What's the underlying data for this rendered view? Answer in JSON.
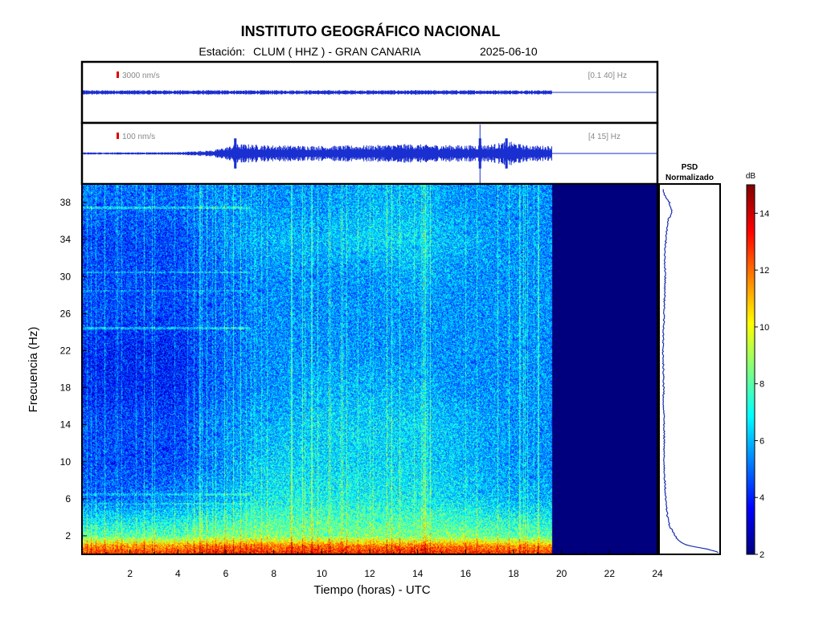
{
  "header": {
    "title": "INSTITUTO GEOGRÁFICO NACIONAL",
    "station_label": "Estación:",
    "station": "CLUM ( HHZ ) - GRAN CANARIA",
    "date": "2025-06-10"
  },
  "traces": [
    {
      "scale": "3000 nm/s",
      "band": "[0.1 40] Hz"
    },
    {
      "scale": "100 nm/s",
      "band": "[4 15] Hz"
    }
  ],
  "psd": {
    "title_line1": "PSD",
    "title_line2": "Normalizado"
  },
  "colorbar": {
    "unit": "dB",
    "range": [
      2,
      15
    ],
    "ticks": [
      2,
      4,
      6,
      8,
      10,
      12,
      14
    ]
  },
  "chart_data": [
    {
      "type": "line",
      "name": "seismogram-broadband",
      "xlabel": "",
      "ylabel": "",
      "xlim": [
        0,
        24
      ],
      "data_end_hour": 19.6,
      "amplitude_profile": {
        "x": [
          0,
          19.6
        ],
        "relative_amplitude": [
          0.08,
          0.08
        ]
      }
    },
    {
      "type": "line",
      "name": "seismogram-filtered",
      "xlabel": "",
      "ylabel": "",
      "xlim": [
        0,
        24
      ],
      "data_end_hour": 19.6,
      "amplitude_profile": {
        "x": [
          0,
          2,
          4,
          5.5,
          6.5,
          8,
          10,
          12,
          13.5,
          14.5,
          16,
          17,
          17.8,
          18.5,
          19.6
        ],
        "relative_amplitude": [
          0.04,
          0.04,
          0.05,
          0.12,
          0.35,
          0.3,
          0.28,
          0.3,
          0.35,
          0.32,
          0.3,
          0.32,
          0.45,
          0.3,
          0.28
        ]
      },
      "spikes_hour": [
        6.4,
        16.6,
        17.7
      ]
    },
    {
      "type": "heatmap",
      "xlabel": "Tiempo (horas) - UTC",
      "ylabel": "Frecuencia  (Hz)",
      "xlim": [
        0,
        24
      ],
      "ylim": [
        0,
        40
      ],
      "xticks": [
        2,
        4,
        6,
        8,
        10,
        12,
        14,
        16,
        18,
        20,
        22,
        24
      ],
      "yticks": [
        2,
        6,
        10,
        14,
        18,
        22,
        26,
        30,
        34,
        38
      ],
      "data_end_hour": 19.6,
      "color_scale": "jet",
      "zlim": [
        2,
        15
      ],
      "approx_level_db": {
        "hours": [
          0,
          2,
          4,
          6,
          8,
          10,
          12,
          14,
          16,
          18,
          19.6
        ],
        "freqs": [
          1,
          2,
          6,
          10,
          14,
          18,
          22,
          26,
          30,
          34,
          38
        ],
        "levels": [
          [
            11,
            11,
            11,
            11.5,
            11.5,
            11.5,
            11.5,
            11.5,
            11.5,
            11,
            11
          ],
          [
            8,
            8,
            8,
            8.5,
            8.5,
            8.5,
            8.5,
            8.5,
            8.5,
            8,
            8
          ],
          [
            5,
            5,
            5.5,
            6,
            7,
            7,
            7,
            7,
            6.5,
            6,
            6
          ],
          [
            4.5,
            4.5,
            4.5,
            5.5,
            6.5,
            6.5,
            6.5,
            6.5,
            6,
            5.5,
            5.5
          ],
          [
            4.5,
            4.5,
            4.5,
            5.5,
            6,
            6.5,
            6.5,
            6.5,
            6,
            5.5,
            5.5
          ],
          [
            4,
            4,
            4,
            5,
            5.5,
            6,
            6,
            6,
            5.5,
            5.5,
            5.5
          ],
          [
            4,
            4,
            4,
            5,
            5.5,
            5.5,
            5.5,
            5.5,
            5.5,
            5.5,
            5.5
          ],
          [
            4.5,
            4.5,
            4.5,
            5,
            5.5,
            5.5,
            5.5,
            5.5,
            5.5,
            5.5,
            5.5
          ],
          [
            4.5,
            4.5,
            4.5,
            5,
            5.5,
            5.5,
            5.5,
            6,
            5.5,
            5.5,
            5.5
          ],
          [
            4.5,
            4.5,
            4.5,
            5.5,
            6,
            6,
            6.5,
            6.5,
            6,
            5.5,
            5.5
          ],
          [
            5,
            5,
            5,
            5.5,
            5.5,
            5.5,
            6,
            6,
            5.5,
            5.5,
            5.5
          ]
        ]
      },
      "fill_after_data_db": 2
    },
    {
      "type": "line",
      "name": "psd-normalizado",
      "xlim": [
        0,
        1
      ],
      "ylim": [
        0,
        40
      ],
      "freqs": [
        0.2,
        0.5,
        1,
        1.5,
        2,
        3,
        4,
        5,
        6,
        7,
        8,
        10,
        12,
        14,
        16,
        18,
        20,
        22,
        24,
        26,
        28,
        30,
        32,
        34,
        36,
        37,
        38,
        39,
        40
      ],
      "values": [
        1.0,
        0.85,
        0.45,
        0.3,
        0.25,
        0.16,
        0.12,
        0.1,
        0.09,
        0.08,
        0.07,
        0.06,
        0.06,
        0.06,
        0.05,
        0.05,
        0.05,
        0.04,
        0.05,
        0.06,
        0.07,
        0.08,
        0.07,
        0.09,
        0.12,
        0.2,
        0.15,
        0.05,
        0.02
      ]
    }
  ]
}
